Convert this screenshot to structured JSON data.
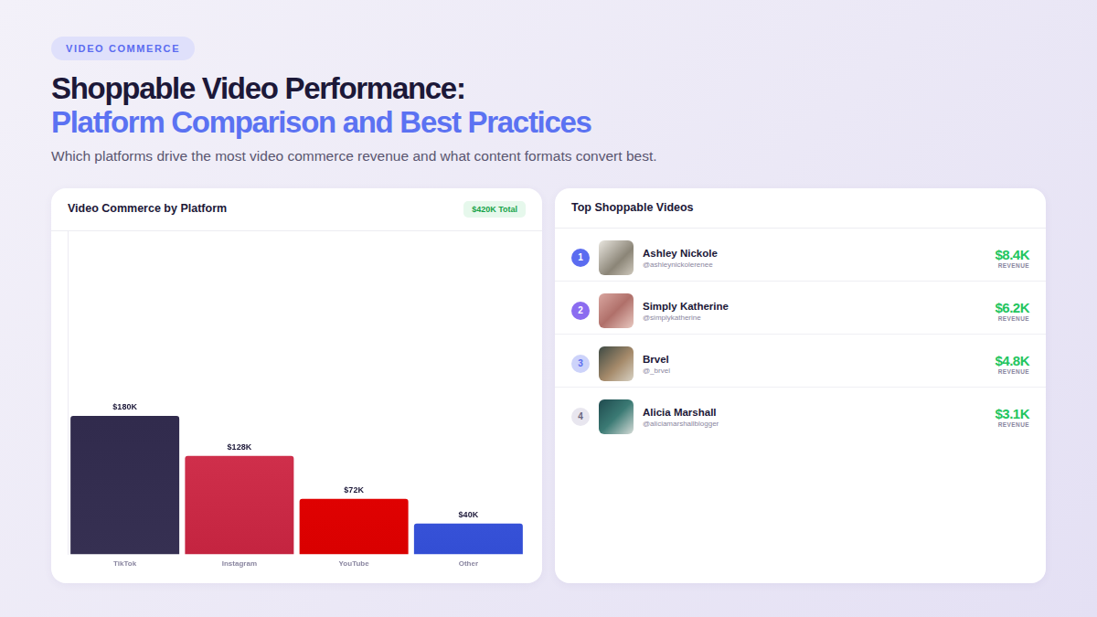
{
  "header": {
    "tag": "VIDEO COMMERCE",
    "title": "Shoppable Video Performance:",
    "title_highlight": "Platform Comparison and Best Practices",
    "subtitle": "Which platforms drive the most video commerce revenue and what content formats convert best."
  },
  "chart_data": {
    "type": "bar",
    "title": "Video Commerce by Platform",
    "annotations": [
      "$420K Total"
    ],
    "categories": [
      "TikTok",
      "Instagram",
      "YouTube",
      "Other"
    ],
    "values": [
      180,
      128,
      72,
      40
    ],
    "value_labels": [
      "$180K",
      "$128K",
      "$72K",
      "$40K"
    ],
    "colors": [
      "#221c3e",
      "#e0405c",
      "#f50000",
      "#4f6af0"
    ],
    "ylim": [
      0,
      420
    ],
    "data_labels": true,
    "tick_labels": "x",
    "grid": false
  },
  "top_videos": {
    "title": "Top Shoppable Videos",
    "items": [
      {
        "rank": 1,
        "name": "Ashley Nickole",
        "handle": "@ashleynickolerenee",
        "value": "$8.4K",
        "caption": "REVENUE"
      },
      {
        "rank": 2,
        "name": "Simply Katherine",
        "handle": "@simplykatherine",
        "value": "$6.2K",
        "caption": "REVENUE"
      },
      {
        "rank": 3,
        "name": "Brvel",
        "handle": "@_brvel",
        "value": "$4.8K",
        "caption": "REVENUE"
      },
      {
        "rank": 4,
        "name": "Alicia Marshall",
        "handle": "@aliciamarshallblogger",
        "value": "$3.1K",
        "caption": "REVENUE"
      }
    ]
  }
}
